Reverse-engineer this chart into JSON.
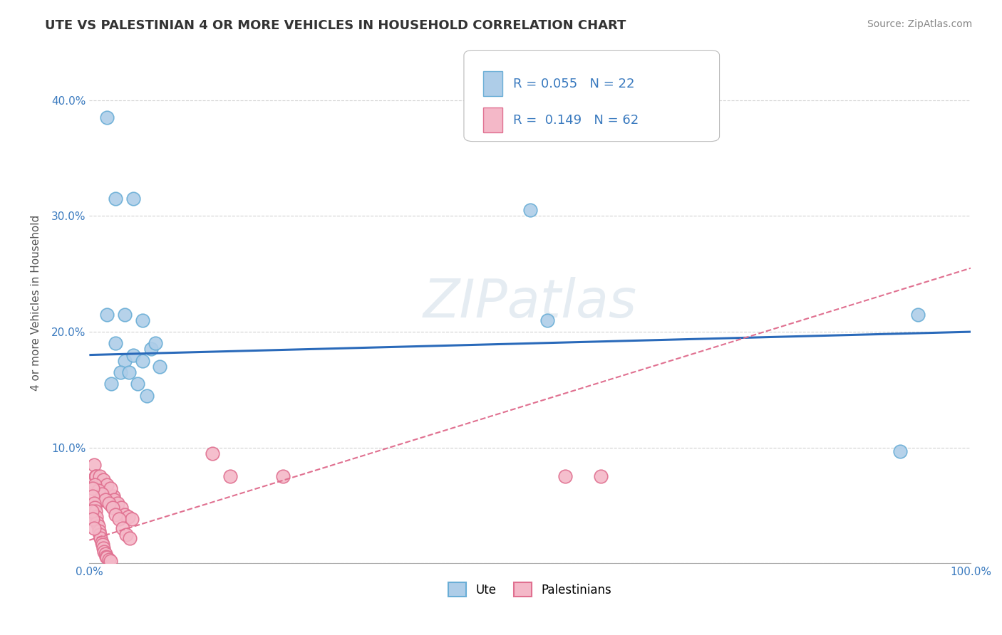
{
  "title": "UTE VS PALESTINIAN 4 OR MORE VEHICLES IN HOUSEHOLD CORRELATION CHART",
  "source": "Source: ZipAtlas.com",
  "ylabel": "4 or more Vehicles in Household",
  "watermark": "ZIPatlas",
  "xlim": [
    0.0,
    1.0
  ],
  "ylim": [
    0.0,
    0.45
  ],
  "xticks": [
    0.0,
    0.25,
    0.5,
    0.75,
    1.0
  ],
  "xticklabels": [
    "0.0%",
    "",
    "",
    "",
    "100.0%"
  ],
  "yticks": [
    0.0,
    0.1,
    0.2,
    0.3,
    0.4
  ],
  "yticklabels": [
    "",
    "10.0%",
    "20.0%",
    "30.0%",
    "40.0%"
  ],
  "ute_color": "#aecde8",
  "ute_edge_color": "#6aaed6",
  "palestinian_color": "#f4b8c8",
  "palestinian_edge_color": "#e07090",
  "ute_R": 0.055,
  "ute_N": 22,
  "palestinian_R": 0.149,
  "palestinian_N": 62,
  "legend_ute_label": "Ute",
  "legend_palestinian_label": "Palestinians",
  "ute_scatter_x": [
    0.02,
    0.03,
    0.05,
    0.04,
    0.06,
    0.02,
    0.03,
    0.04,
    0.05,
    0.06,
    0.07,
    0.08,
    0.035,
    0.045,
    0.025,
    0.055,
    0.065,
    0.075,
    0.5,
    0.52,
    0.92,
    0.94
  ],
  "ute_scatter_y": [
    0.385,
    0.315,
    0.315,
    0.215,
    0.21,
    0.215,
    0.19,
    0.175,
    0.18,
    0.175,
    0.185,
    0.17,
    0.165,
    0.165,
    0.155,
    0.155,
    0.145,
    0.19,
    0.305,
    0.21,
    0.097,
    0.215
  ],
  "pal_scatter_x": [
    0.005,
    0.007,
    0.009,
    0.011,
    0.013,
    0.015,
    0.017,
    0.019,
    0.021,
    0.023,
    0.025,
    0.027,
    0.008,
    0.012,
    0.016,
    0.02,
    0.024,
    0.028,
    0.032,
    0.036,
    0.04,
    0.044,
    0.048,
    0.006,
    0.01,
    0.014,
    0.018,
    0.022,
    0.026,
    0.03,
    0.034,
    0.038,
    0.042,
    0.046,
    0.004,
    0.004,
    0.005,
    0.006,
    0.007,
    0.008,
    0.009,
    0.01,
    0.011,
    0.012,
    0.013,
    0.014,
    0.015,
    0.003,
    0.004,
    0.005,
    0.016,
    0.017,
    0.018,
    0.019,
    0.02,
    0.022,
    0.024,
    0.14,
    0.16,
    0.22,
    0.54,
    0.58
  ],
  "pal_scatter_y": [
    0.085,
    0.075,
    0.068,
    0.055,
    0.065,
    0.06,
    0.055,
    0.055,
    0.06,
    0.055,
    0.05,
    0.058,
    0.075,
    0.075,
    0.072,
    0.068,
    0.065,
    0.055,
    0.052,
    0.048,
    0.042,
    0.04,
    0.038,
    0.068,
    0.063,
    0.06,
    0.055,
    0.052,
    0.048,
    0.042,
    0.038,
    0.03,
    0.025,
    0.022,
    0.065,
    0.058,
    0.052,
    0.048,
    0.045,
    0.04,
    0.035,
    0.032,
    0.028,
    0.025,
    0.022,
    0.018,
    0.016,
    0.045,
    0.038,
    0.03,
    0.013,
    0.01,
    0.008,
    0.006,
    0.005,
    0.003,
    0.002,
    0.095,
    0.075,
    0.075,
    0.075,
    0.075
  ],
  "ute_line_x0": 0.0,
  "ute_line_y0": 0.18,
  "ute_line_x1": 1.0,
  "ute_line_y1": 0.2,
  "pal_line_x0": 0.0,
  "pal_line_y0": 0.02,
  "pal_line_x1": 1.0,
  "pal_line_y1": 0.255,
  "background_color": "#ffffff",
  "grid_color": "#cccccc",
  "title_fontsize": 13,
  "axis_label_fontsize": 11,
  "tick_fontsize": 11,
  "legend_fontsize": 13,
  "stat_color": "#3a7abf"
}
